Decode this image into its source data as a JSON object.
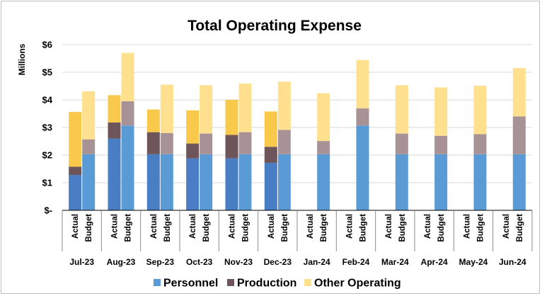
{
  "chart_data": {
    "type": "bar",
    "stacked": true,
    "title": "Total Operating Expense",
    "ylabel": "Millions",
    "ylim": [
      0,
      6
    ],
    "y_ticks": [
      {
        "value": 0,
        "label": "$-"
      },
      {
        "value": 1,
        "label": "$1"
      },
      {
        "value": 2,
        "label": "$2"
      },
      {
        "value": 3,
        "label": "$3"
      },
      {
        "value": 4,
        "label": "$4"
      },
      {
        "value": 5,
        "label": "$5"
      },
      {
        "value": 6,
        "label": "$6"
      }
    ],
    "grid": true,
    "legend": "bottom",
    "sub_categories": [
      "Actual",
      "Budget"
    ],
    "categories": [
      "Jul-23",
      "Aug-23",
      "Sep-23",
      "Oct-23",
      "Nov-23",
      "Dec-23",
      "Jan-24",
      "Feb-24",
      "Mar-24",
      "Apr-24",
      "May-24",
      "Jun-24"
    ],
    "series": [
      {
        "name": "Personnel",
        "color": "#5b9bd5",
        "actual": [
          1.28,
          2.6,
          2.03,
          1.88,
          1.88,
          1.72,
          null,
          null,
          null,
          null,
          null,
          null
        ],
        "budget": [
          2.03,
          3.07,
          2.03,
          2.03,
          2.03,
          2.03,
          2.03,
          3.07,
          2.03,
          2.03,
          2.03,
          2.03
        ]
      },
      {
        "name": "Production",
        "color": "#7b6167",
        "actual": [
          0.3,
          0.58,
          0.8,
          0.54,
          0.85,
          0.58,
          null,
          null,
          null,
          null,
          null,
          null
        ],
        "budget": [
          0.54,
          0.88,
          0.77,
          0.75,
          0.8,
          0.88,
          0.48,
          0.62,
          0.75,
          0.67,
          0.73,
          1.37
        ]
      },
      {
        "name": "Other Operating",
        "color": "#ffd966",
        "actual": [
          1.98,
          0.99,
          0.82,
          1.2,
          1.27,
          1.28,
          null,
          null,
          null,
          null,
          null,
          null
        ],
        "budget": [
          1.74,
          1.75,
          1.75,
          1.75,
          1.76,
          1.75,
          1.73,
          1.75,
          1.75,
          1.75,
          1.75,
          1.75
        ]
      }
    ]
  },
  "colors": {
    "personnel_actual": "#4a7ec4",
    "personnel_budget": "#5b9bd5",
    "production_actual": "#6d5559",
    "production_budget": "#a79296",
    "other_actual": "#f9c94b",
    "other_budget": "#ffe08f",
    "grid": "#d9d9d9",
    "axis": "#000000"
  }
}
